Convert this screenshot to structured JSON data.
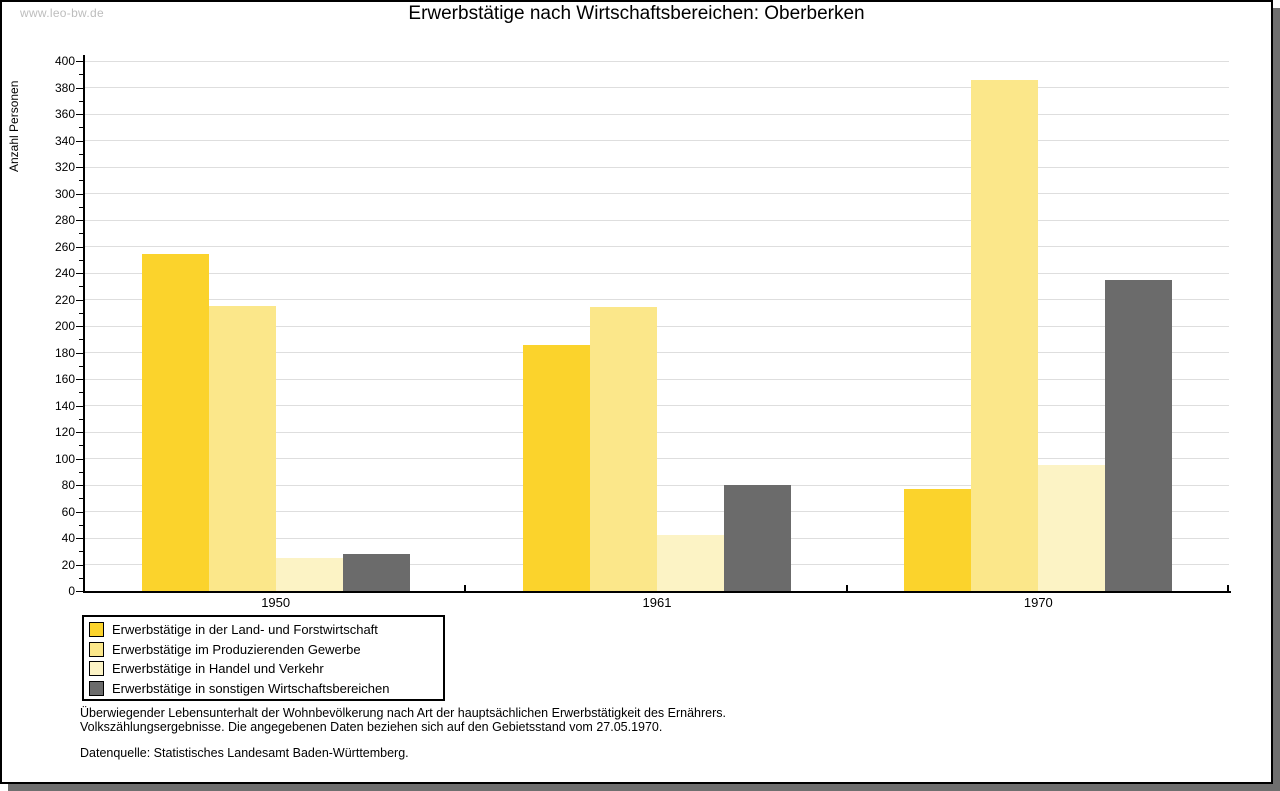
{
  "watermark": "www.leo-bw.de",
  "chart_data": {
    "type": "bar",
    "title": "Erwerbstätige nach Wirtschaftsbereichen: Oberberken",
    "xlabel": "",
    "ylabel": "Anzahl Personen",
    "categories": [
      "1950",
      "1961",
      "1970"
    ],
    "series": [
      {
        "name": "Erwerbstätige in der Land- und Forstwirtschaft",
        "color": "#FBD32C",
        "values": [
          254,
          186,
          77
        ]
      },
      {
        "name": "Erwerbstätige im Produzierenden Gewerbe",
        "color": "#FBE78A",
        "values": [
          215,
          214,
          386
        ]
      },
      {
        "name": "Erwerbstätige in Handel und Verkehr",
        "color": "#FCF3C5",
        "values": [
          25,
          42,
          95
        ]
      },
      {
        "name": "Erwerbstätige in sonstigen Wirtschaftsbereichen",
        "color": "#6B6B6B",
        "values": [
          28,
          80,
          235
        ]
      }
    ],
    "ylim": [
      0,
      400
    ],
    "ytick_step": 20,
    "ytick_minor_step": 10,
    "ytick_labels": [
      "0",
      "20",
      "40",
      "60",
      "80",
      "100",
      "120",
      "140",
      "160",
      "180",
      "200",
      "220",
      "240",
      "260",
      "280",
      "300",
      "320",
      "340",
      "360",
      "380",
      "400"
    ],
    "grid": true,
    "legend_position": "bottom-left"
  },
  "footer": {
    "note_line1": "Überwiegender Lebensunterhalt der Wohnbevölkerung nach Art der hauptsächlichen Erwerbstätigkeit des Ernährers.",
    "note_line2": "Volkszählungsergebnisse. Die angegebenen Daten beziehen sich auf den Gebietsstand vom 27.05.1970.",
    "source": "Datenquelle: Statistisches Landesamt Baden-Württemberg."
  },
  "colors": {
    "grid": "#DEDEDE",
    "axis": "#000000",
    "shadow": "#6F6F6F",
    "watermark": "#BDBDBD",
    "background": "#FFFFFF"
  }
}
